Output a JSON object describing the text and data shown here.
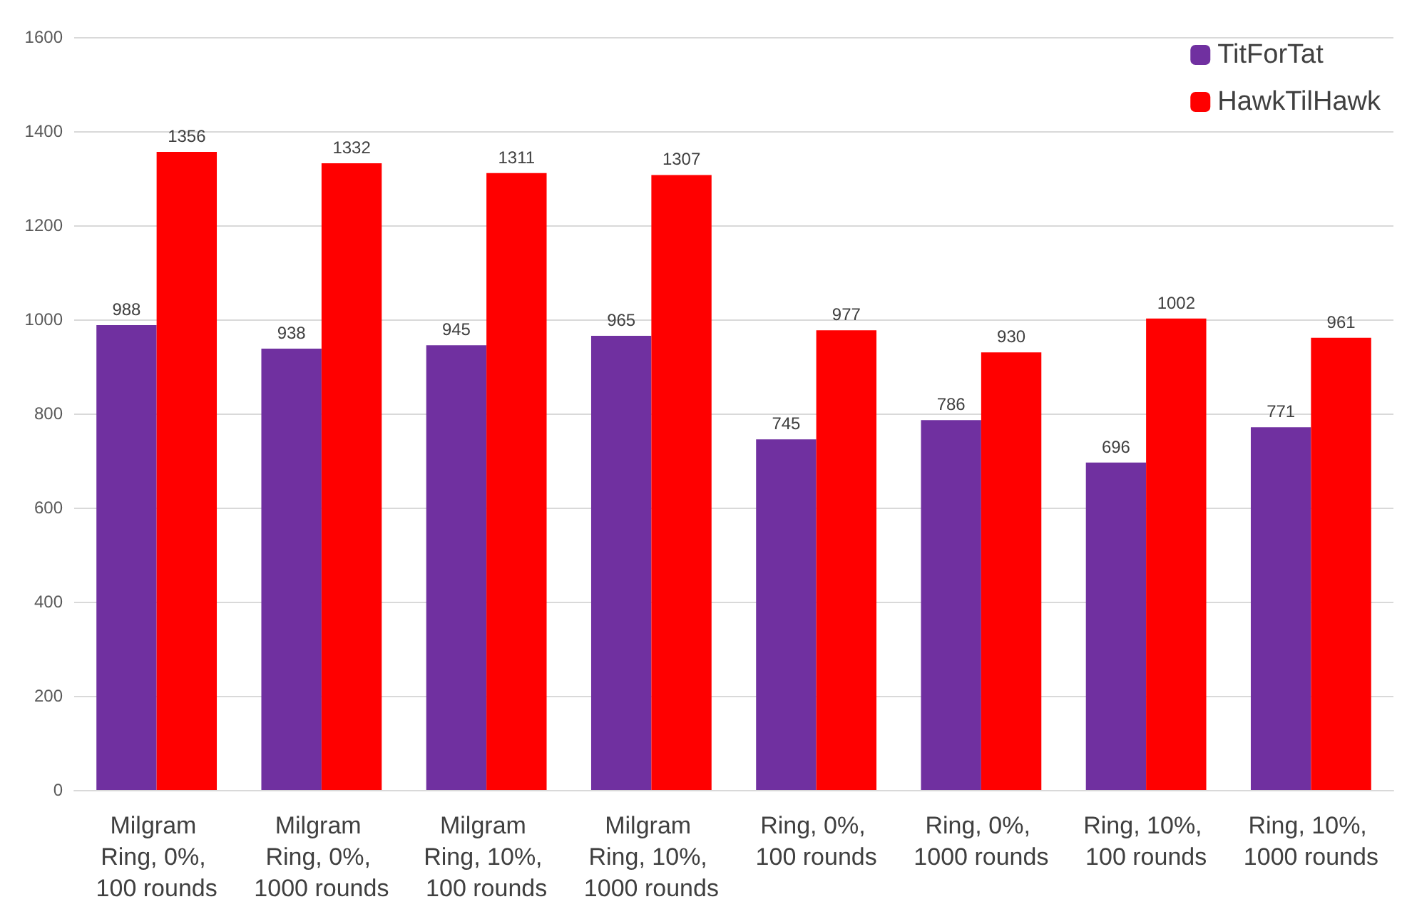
{
  "chart_data": {
    "type": "bar",
    "categories": [
      "Milgram Ring, 0%, 100 rounds",
      "Milgram Ring, 0%, 1000 rounds",
      "Milgram Ring, 10%, 100 rounds",
      "Milgram Ring, 10%, 1000 rounds",
      "Ring, 0%, 100 rounds",
      "Ring, 0%, 1000 rounds",
      "Ring, 10%, 100 rounds",
      "Ring, 10%, 1000 rounds"
    ],
    "series": [
      {
        "name": "TitForTat",
        "color": "#7030a0",
        "values": [
          988,
          938,
          945,
          965,
          745,
          786,
          696,
          771
        ]
      },
      {
        "name": "HawkTilHawk",
        "color": "#ff0000",
        "values": [
          1356,
          1332,
          1311,
          1307,
          977,
          930,
          1002,
          961
        ]
      }
    ],
    "ylim": [
      0,
      1600
    ],
    "yticks": [
      0,
      200,
      400,
      600,
      800,
      1000,
      1200,
      1400,
      1600
    ],
    "grid": "y",
    "legend": "top right",
    "data_labels": true
  }
}
